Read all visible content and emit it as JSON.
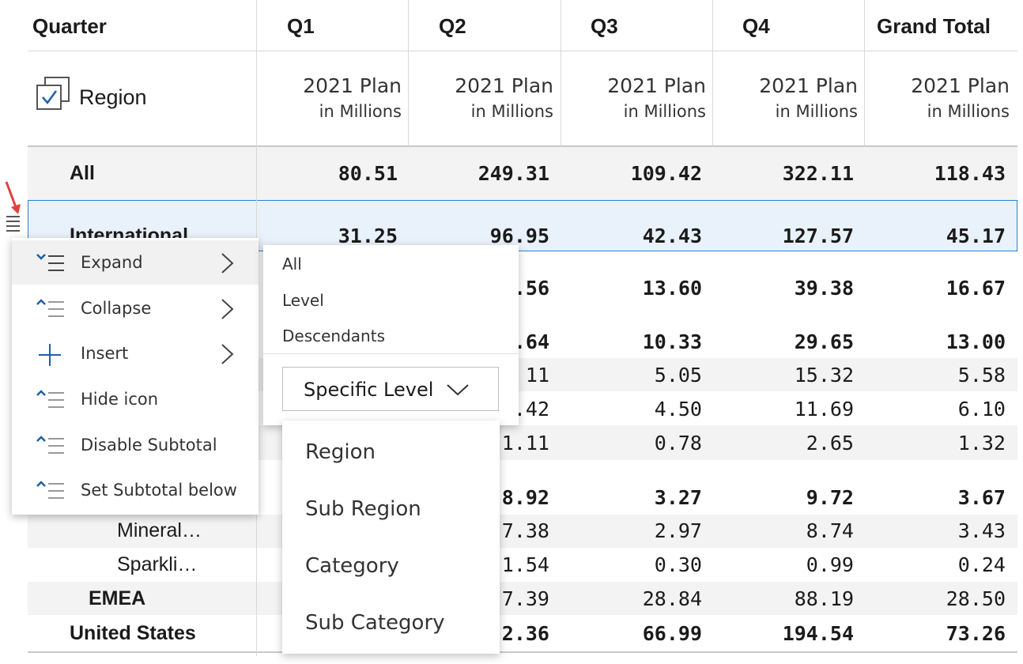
{
  "table": {
    "header_quarter": "Quarter",
    "quarters": [
      "Q1",
      "Q2",
      "Q3",
      "Q4",
      "Grand Total"
    ],
    "dimension_label": "Region",
    "measure_line1": "2021 Plan",
    "measure_line2": "in Millions",
    "rows": [
      {
        "label": "All",
        "values": [
          "80.51",
          "249.31",
          "109.42",
          "322.11",
          "118.43"
        ]
      },
      {
        "label": "International",
        "values": [
          "31.25",
          "96.95",
          "42.43",
          "127.57",
          "45.17"
        ]
      },
      {
        "label": "",
        "values": [
          ".56",
          "13.60",
          "39.38",
          "16.67"
        ]
      },
      {
        "label": "",
        "values": [
          ".64",
          "10.33",
          "29.65",
          "13.00"
        ]
      },
      {
        "label": "",
        "values": ".11 5.05 15.32 5.58"
      },
      {
        "label": "",
        "values": [
          ".42",
          "4.50",
          "11.69",
          "6.10"
        ]
      },
      {
        "label": "",
        "values": [
          "1.11",
          "0.78",
          "2.65",
          "1.32"
        ]
      },
      {
        "label": "",
        "values": [
          "8.92",
          "3.27",
          "9.72",
          "3.67"
        ]
      },
      {
        "label": "Mineral…",
        "values": [
          "7.38",
          "2.97",
          "8.74",
          "3.43"
        ]
      },
      {
        "label": "Sparkli…",
        "values": [
          "1.54",
          "0.30",
          "0.99",
          "0.24"
        ]
      },
      {
        "label": "EMEA",
        "values": [
          "7.39",
          "28.84",
          "88.19",
          "28.50"
        ]
      },
      {
        "label": "United States",
        "values": [
          "2.36",
          "66.99",
          "194.54",
          "73.26"
        ]
      }
    ],
    "row5_values": [
      "11",
      "5.05",
      "15.32",
      "5.58"
    ]
  },
  "context_menu": {
    "items": [
      {
        "label": "Expand",
        "icon": "expand-icon"
      },
      {
        "label": "Collapse",
        "icon": "collapse-icon"
      },
      {
        "label": "Insert",
        "icon": "plus-icon"
      },
      {
        "label": "Hide icon",
        "icon": "hide-icon"
      },
      {
        "label": "Disable Subtotal",
        "icon": "subtotal-icon"
      },
      {
        "label": "Set Subtotal below",
        "icon": "subtotal-below-icon"
      }
    ]
  },
  "submenu": {
    "items": [
      "All",
      "Level",
      "Descendants"
    ],
    "dropdown_label": "Specific Level"
  },
  "level_list": {
    "items": [
      "Region",
      "Sub Region",
      "Category",
      "Sub Category"
    ]
  },
  "colors": {
    "accent": "#2a7fd4",
    "icon_blue": "#1f5fa8",
    "arrow": "#e04040"
  }
}
